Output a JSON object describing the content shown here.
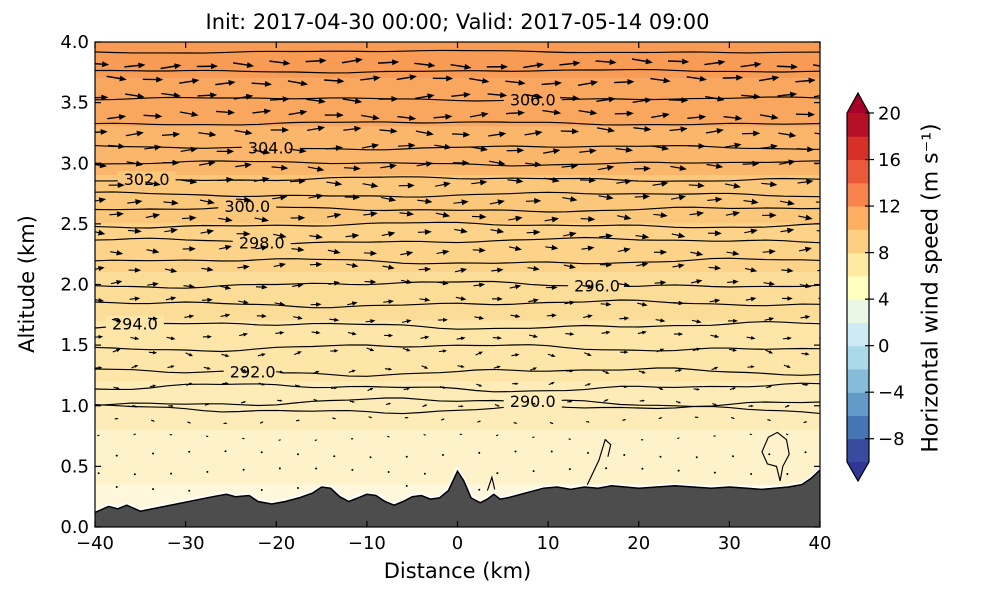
{
  "chart_data": {
    "type": "heatmap",
    "subtype": "vertical cross-section: filled contours of wind speed, line contours of potential temperature, wind quiver, terrain mask",
    "title": "Init: 2017-04-30 00:00; Valid: 2017-05-14 09:00",
    "xlabel": "Distance (km)",
    "ylabel": "Altitude (km)",
    "xlim": [
      -40,
      40
    ],
    "ylim": [
      0.0,
      4.0
    ],
    "x_ticks": [
      "−40",
      "−30",
      "−20",
      "−10",
      "0",
      "10",
      "20",
      "30",
      "40"
    ],
    "x_tick_values": [
      -40,
      -30,
      -20,
      -10,
      0,
      10,
      20,
      30,
      40
    ],
    "y_ticks": [
      "0.0",
      "0.5",
      "1.0",
      "1.5",
      "2.0",
      "2.5",
      "3.0",
      "3.5",
      "4.0"
    ],
    "y_tick_values": [
      0.0,
      0.5,
      1.0,
      1.5,
      2.0,
      2.5,
      3.0,
      3.5,
      4.0
    ],
    "grid": false,
    "colorbar": {
      "label": "Horizontal wind speed (m s⁻¹)",
      "ticks": [
        "20",
        "16",
        "12",
        "8",
        "4",
        "0",
        "−4",
        "−8"
      ],
      "tick_values": [
        20,
        16,
        12,
        8,
        4,
        0,
        -4,
        -8
      ],
      "range": [
        -10,
        20
      ],
      "level_step": 2,
      "colormap": "RdYlBu_r",
      "segment_colors_bottom_to_top": [
        "#384b9f",
        "#4575b4",
        "#649ac7",
        "#86bcd9",
        "#abd9e9",
        "#ceeaf3",
        "#eaf7e5",
        "#ffffbf",
        "#feeaa0",
        "#fecf80",
        "#fdae61",
        "#f7834d",
        "#ea593a",
        "#d73027",
        "#b61026"
      ],
      "under_arrow_color": "#313695",
      "over_arrow_color": "#a50026"
    },
    "theta_contours": {
      "units": "K",
      "interval": 1.0,
      "line_color": "#000000",
      "levels": [
        {
          "value": 289,
          "alt_km": 0.97
        },
        {
          "value": 290,
          "alt_km": 1.03,
          "label": "290.0",
          "label_x_km": 8.3
        },
        {
          "value": 291,
          "alt_km": 1.15
        },
        {
          "value": 292,
          "alt_km": 1.28,
          "label": "292.0",
          "label_x_km": -22.6
        },
        {
          "value": 293,
          "alt_km": 1.48
        },
        {
          "value": 294,
          "alt_km": 1.66,
          "label": "294.0",
          "label_x_km": -35.6
        },
        {
          "value": 295,
          "alt_km": 1.84
        },
        {
          "value": 296,
          "alt_km": 2.0,
          "label": "296.0",
          "label_x_km": 15.4
        },
        {
          "value": 297,
          "alt_km": 2.19
        },
        {
          "value": 298,
          "alt_km": 2.36,
          "label": "298.0",
          "label_x_km": -21.6
        },
        {
          "value": 299,
          "alt_km": 2.49
        },
        {
          "value": 300,
          "alt_km": 2.62,
          "label": "300.0",
          "label_x_km": -23.2
        },
        {
          "value": 301,
          "alt_km": 2.74
        },
        {
          "value": 302,
          "alt_km": 2.87,
          "label": "302.0",
          "label_x_km": -34.3
        },
        {
          "value": 303,
          "alt_km": 3.0
        },
        {
          "value": 304,
          "alt_km": 3.13,
          "label": "304.0",
          "label_x_km": -20.6
        },
        {
          "value": 305,
          "alt_km": 3.33
        },
        {
          "value": 306,
          "alt_km": 3.53,
          "label": "306.0",
          "label_x_km": 8.3
        },
        {
          "value": 307,
          "alt_km": 3.76
        },
        {
          "value": 308,
          "alt_km": 3.92
        }
      ],
      "extra_features": [
        {
          "value": 288,
          "closed": false,
          "points_km": [
            [
              14.2,
              0.33
            ],
            [
              15.6,
              0.55
            ],
            [
              16.3,
              0.72
            ],
            [
              16.9,
              0.68
            ],
            [
              16.6,
              0.58
            ]
          ]
        },
        {
          "value": 288,
          "closed": false,
          "points_km": [
            [
              3.3,
              0.3
            ],
            [
              3.8,
              0.41
            ],
            [
              4.1,
              0.31
            ]
          ]
        },
        {
          "value": 288,
          "closed": true,
          "points_km": [
            [
              33.6,
              0.62
            ],
            [
              34.3,
              0.74
            ],
            [
              35.3,
              0.78
            ],
            [
              36.3,
              0.72
            ],
            [
              36.6,
              0.6
            ],
            [
              35.9,
              0.5
            ],
            [
              35.6,
              0.38
            ],
            [
              35.2,
              0.5
            ],
            [
              34.2,
              0.52
            ]
          ]
        }
      ]
    },
    "wind_profile": [
      {
        "alt_km": 0.2,
        "speed_ms": 0.3
      },
      {
        "alt_km": 0.4,
        "speed_ms": 0.45
      },
      {
        "alt_km": 0.6,
        "speed_ms": 0.7
      },
      {
        "alt_km": 0.8,
        "speed_ms": 1.2
      },
      {
        "alt_km": 1.0,
        "speed_ms": 2.0
      },
      {
        "alt_km": 1.2,
        "speed_ms": 2.6
      },
      {
        "alt_km": 1.5,
        "speed_ms": 3.3
      },
      {
        "alt_km": 1.8,
        "speed_ms": 4.0
      },
      {
        "alt_km": 2.0,
        "speed_ms": 4.5
      },
      {
        "alt_km": 2.3,
        "speed_ms": 5.1
      },
      {
        "alt_km": 2.6,
        "speed_ms": 5.7
      },
      {
        "alt_km": 3.0,
        "speed_ms": 6.5
      },
      {
        "alt_km": 3.4,
        "speed_ms": 7.3
      },
      {
        "alt_km": 3.7,
        "speed_ms": 7.9
      },
      {
        "alt_km": 3.95,
        "speed_ms": 8.4
      }
    ],
    "wind_direction": "west-to-east (arrows point right)",
    "speed_bands": [
      {
        "alt_from": 0.0,
        "alt_to": 0.35,
        "color": "#fff7dc"
      },
      {
        "alt_from": 0.35,
        "alt_to": 0.8,
        "color": "#fef2cb"
      },
      {
        "alt_from": 0.8,
        "alt_to": 1.2,
        "color": "#fdecb7"
      },
      {
        "alt_from": 1.2,
        "alt_to": 1.7,
        "color": "#fde6a8"
      },
      {
        "alt_from": 1.7,
        "alt_to": 2.1,
        "color": "#fcdd98"
      },
      {
        "alt_from": 2.1,
        "alt_to": 2.5,
        "color": "#fcd389"
      },
      {
        "alt_from": 2.5,
        "alt_to": 2.9,
        "color": "#fbc77b"
      },
      {
        "alt_from": 2.9,
        "alt_to": 3.3,
        "color": "#fab66b"
      },
      {
        "alt_from": 3.3,
        "alt_to": 3.7,
        "color": "#f9a75e"
      },
      {
        "alt_from": 3.7,
        "alt_to": 4.0,
        "color": "#f89b55"
      }
    ],
    "terrain_color": "#4d4d4d",
    "terrain_profile_km": [
      [
        -40,
        0.12
      ],
      [
        -38.5,
        0.17
      ],
      [
        -37.5,
        0.15
      ],
      [
        -36.5,
        0.18
      ],
      [
        -35,
        0.13
      ],
      [
        -33,
        0.16
      ],
      [
        -31,
        0.19
      ],
      [
        -29,
        0.22
      ],
      [
        -27,
        0.25
      ],
      [
        -25.5,
        0.27
      ],
      [
        -24.5,
        0.25
      ],
      [
        -23,
        0.26
      ],
      [
        -22,
        0.21
      ],
      [
        -20.5,
        0.19
      ],
      [
        -19,
        0.21
      ],
      [
        -17.5,
        0.24
      ],
      [
        -16,
        0.28
      ],
      [
        -15,
        0.33
      ],
      [
        -14,
        0.32
      ],
      [
        -13,
        0.25
      ],
      [
        -12,
        0.21
      ],
      [
        -11,
        0.24
      ],
      [
        -10,
        0.27
      ],
      [
        -9,
        0.26
      ],
      [
        -8,
        0.21
      ],
      [
        -7,
        0.18
      ],
      [
        -6,
        0.21
      ],
      [
        -5,
        0.25
      ],
      [
        -4,
        0.26
      ],
      [
        -3,
        0.23
      ],
      [
        -2,
        0.24
      ],
      [
        -1,
        0.3
      ],
      [
        0,
        0.46
      ],
      [
        0.7,
        0.38
      ],
      [
        1.5,
        0.24
      ],
      [
        2.5,
        0.2
      ],
      [
        3.3,
        0.23
      ],
      [
        4,
        0.27
      ],
      [
        4.7,
        0.23
      ],
      [
        5.5,
        0.24
      ],
      [
        6.5,
        0.26
      ],
      [
        8,
        0.29
      ],
      [
        9.5,
        0.32
      ],
      [
        11,
        0.33
      ],
      [
        12.5,
        0.31
      ],
      [
        14,
        0.33
      ],
      [
        15.5,
        0.32
      ],
      [
        17,
        0.34
      ],
      [
        18.5,
        0.33
      ],
      [
        20,
        0.32
      ],
      [
        22,
        0.33
      ],
      [
        24,
        0.34
      ],
      [
        26,
        0.33
      ],
      [
        28,
        0.32
      ],
      [
        30,
        0.33
      ],
      [
        32,
        0.32
      ],
      [
        33.5,
        0.31
      ],
      [
        35,
        0.32
      ],
      [
        36.5,
        0.33
      ],
      [
        38,
        0.35
      ],
      [
        39,
        0.4
      ],
      [
        40,
        0.47
      ]
    ]
  }
}
